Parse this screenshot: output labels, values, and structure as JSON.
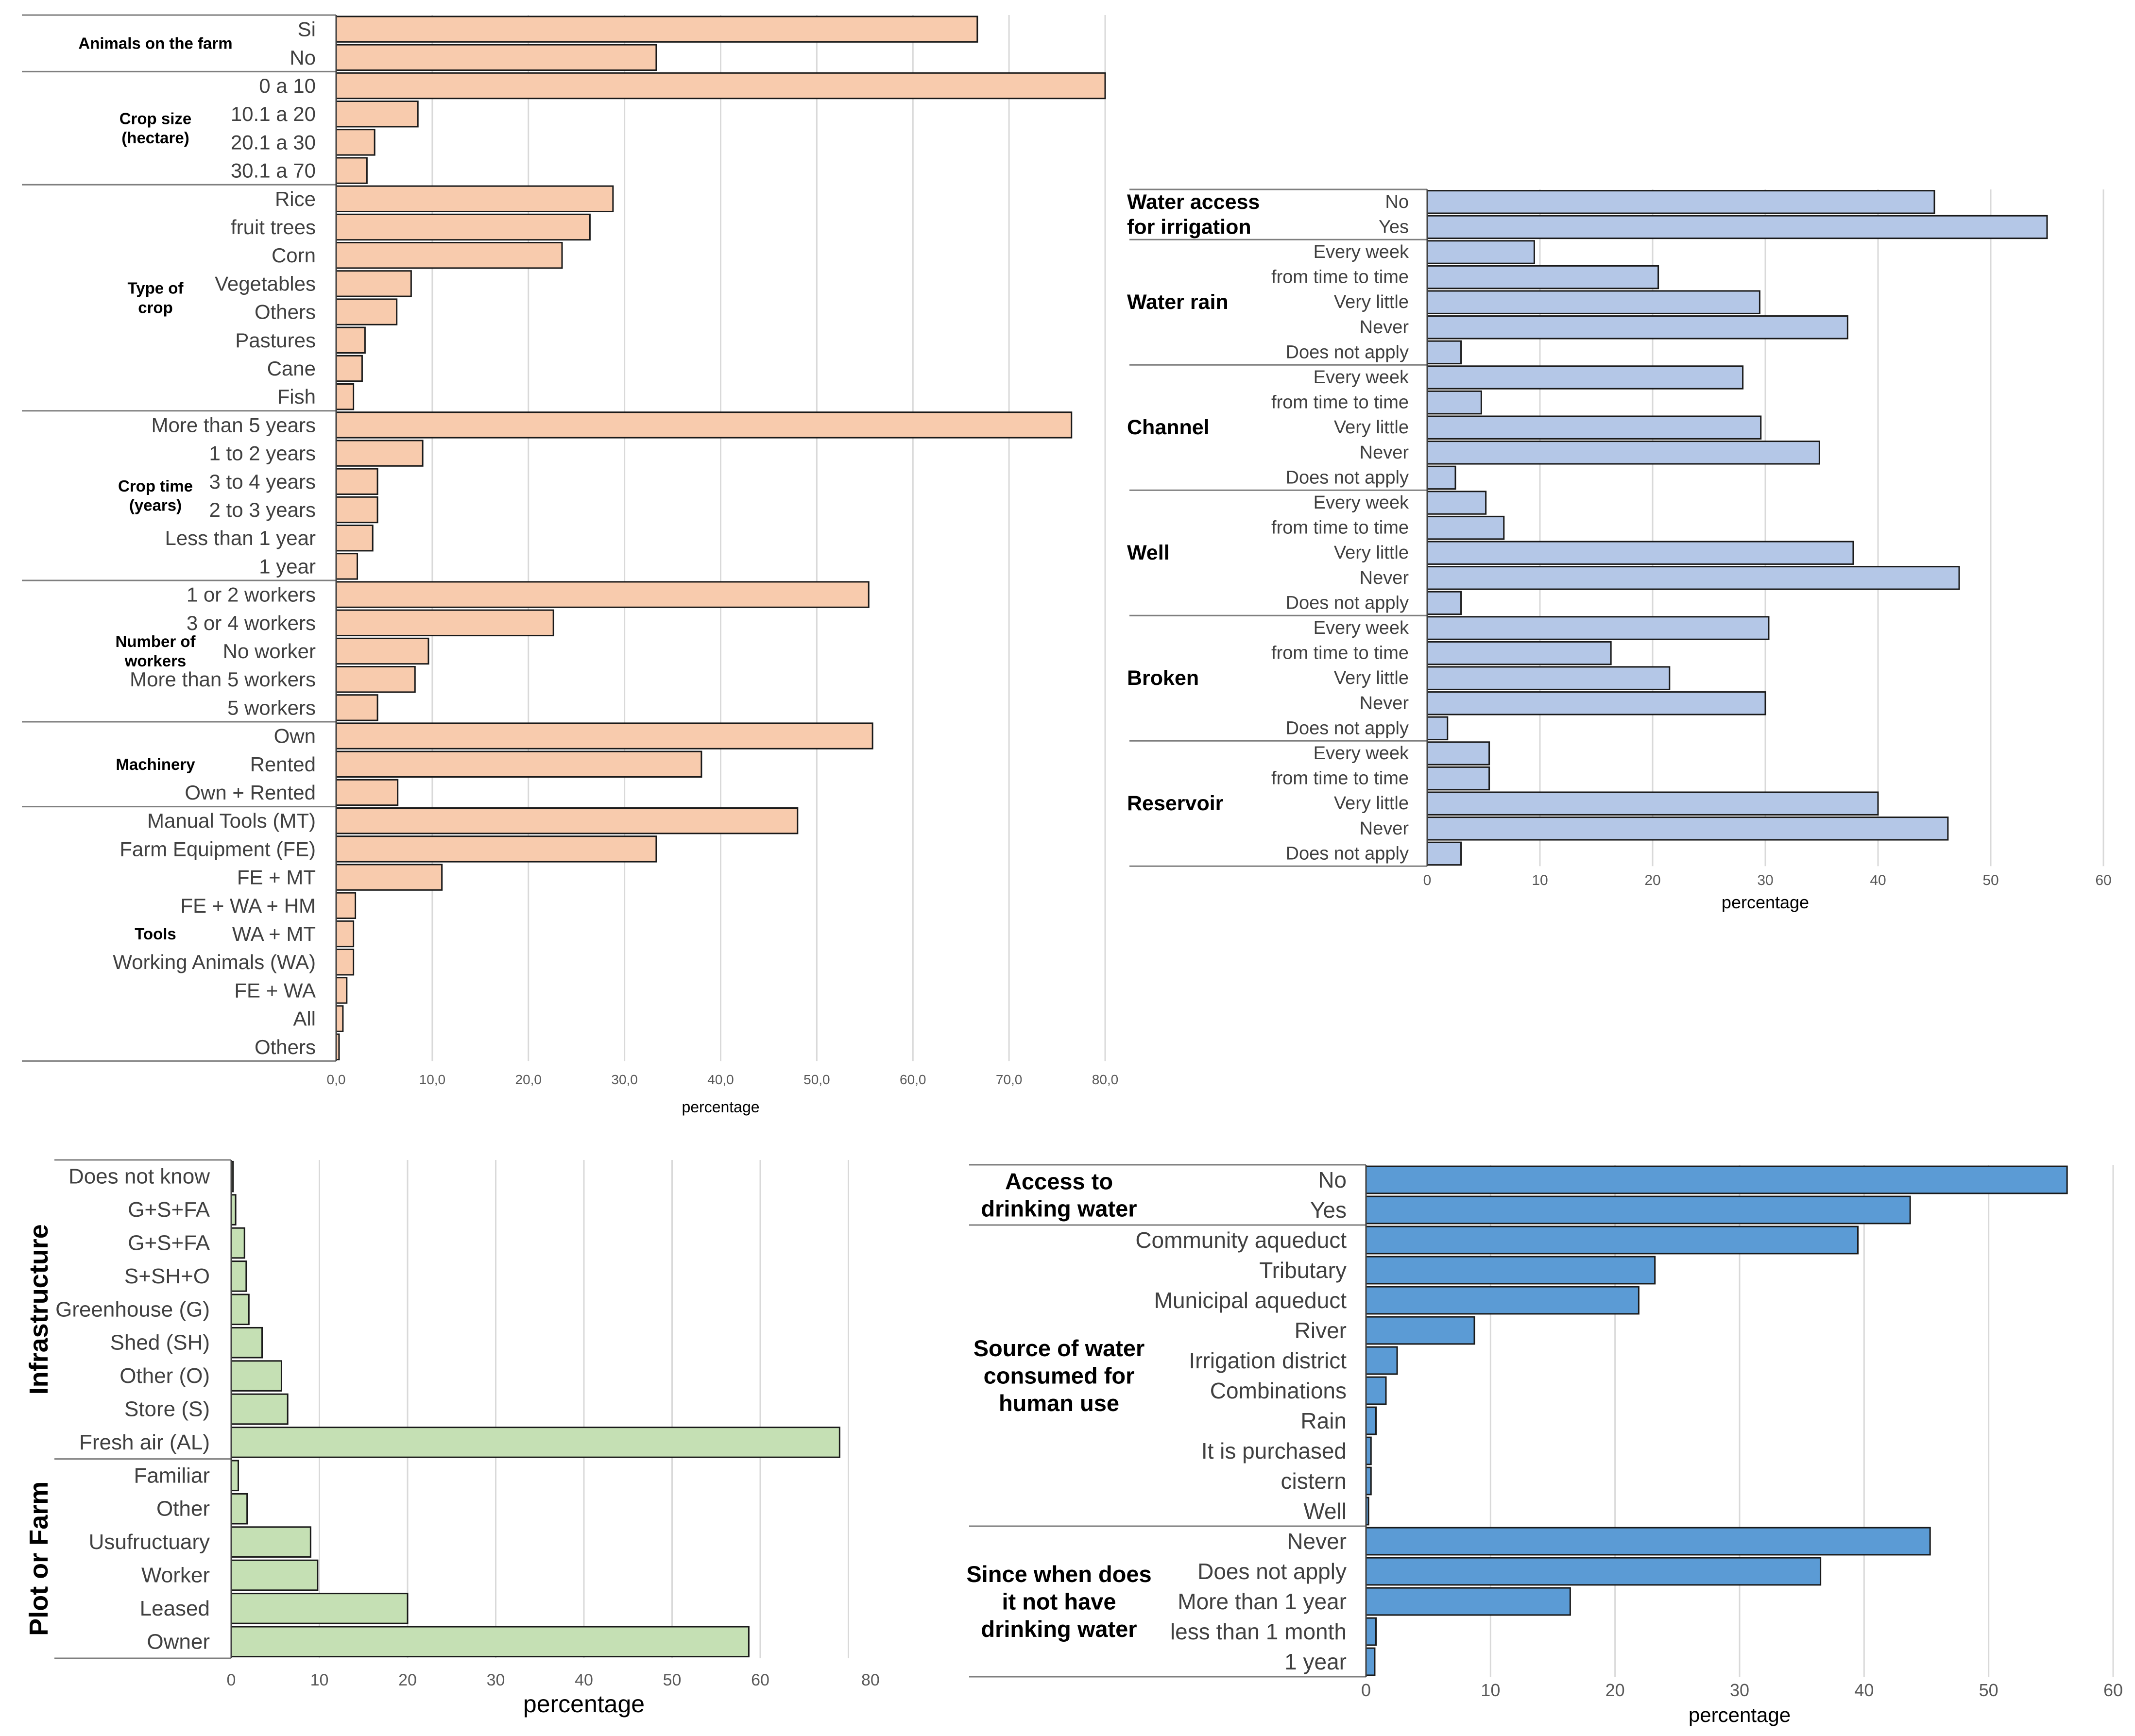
{
  "chart_data": [
    {
      "id": "farm",
      "type": "bar",
      "orientation": "horizontal",
      "color": "#F8CBAD",
      "xlabel": "percentage",
      "xlim": [
        0,
        80
      ],
      "ticks": [
        "0,0",
        "10,0",
        "20,0",
        "30,0",
        "40,0",
        "50,0",
        "60,0",
        "70,0",
        "80,0"
      ],
      "groups": [
        {
          "label": "Animals on the farm",
          "categories": [
            "Si",
            "No"
          ],
          "values": [
            66.7,
            33.3
          ]
        },
        {
          "label": "Crop size\n(hectare)",
          "categories": [
            "0 a 10",
            "10.1 a 20",
            "20.1 a 30",
            "30.1 a 70"
          ],
          "values": [
            84.0,
            8.5,
            4.0,
            3.2
          ]
        },
        {
          "label": "Type of\ncrop",
          "categories": [
            "Rice",
            "fruit trees",
            "Corn",
            "Vegetables",
            "Others",
            "Pastures",
            "Cane",
            "Fish"
          ],
          "values": [
            28.8,
            26.4,
            23.5,
            7.8,
            6.3,
            3.0,
            2.7,
            1.8
          ]
        },
        {
          "label": "Crop time\n(years)",
          "categories": [
            "More than 5 years",
            "1 to 2 years",
            "3 to 4 years",
            "2 to 3 years",
            "Less than 1 year",
            "1 year"
          ],
          "values": [
            76.5,
            9.0,
            4.3,
            4.3,
            3.8,
            2.2
          ]
        },
        {
          "label": "Number of\nworkers",
          "categories": [
            "1 or 2 workers",
            "3 or 4 workers",
            "No worker",
            "More than 5 workers",
            "5 workers"
          ],
          "values": [
            55.4,
            22.6,
            9.6,
            8.2,
            4.3
          ]
        },
        {
          "label": "Machinery",
          "categories": [
            "Own",
            "Rented",
            "Own + Rented"
          ],
          "values": [
            55.8,
            38.0,
            6.4
          ]
        },
        {
          "label": "Tools",
          "categories": [
            "Manual Tools (MT)",
            "Farm Equipment (FE)",
            "FE + MT",
            "FE + WA + HM",
            "WA + MT",
            "Working Animals (WA)",
            "FE + WA",
            "All",
            "Others"
          ],
          "values": [
            48.0,
            33.3,
            11.0,
            2.0,
            1.8,
            1.8,
            1.1,
            0.7,
            0.3
          ]
        }
      ]
    },
    {
      "id": "irrigation",
      "type": "bar",
      "orientation": "horizontal",
      "color": "#B4C7E7",
      "xlabel": "percentage",
      "xlim": [
        0,
        60
      ],
      "ticks": [
        "0",
        "10",
        "20",
        "30",
        "40",
        "50",
        "60"
      ],
      "groups": [
        {
          "label": "Water access\nfor irrigation",
          "categories": [
            "No",
            "Yes"
          ],
          "values": [
            45.0,
            55.0
          ]
        },
        {
          "label": "Water rain",
          "categories": [
            "Every week",
            "from time to time",
            "Very little",
            "Never",
            "Does not apply"
          ],
          "values": [
            9.5,
            20.5,
            29.5,
            37.3,
            3.0
          ]
        },
        {
          "label": "Channel",
          "categories": [
            "Every week",
            "from time to time",
            "Very little",
            "Never",
            "Does not apply"
          ],
          "values": [
            28.0,
            4.8,
            29.6,
            34.8,
            2.5
          ]
        },
        {
          "label": "Well",
          "categories": [
            "Every week",
            "from time to time",
            "Very little",
            "Never",
            "Does not apply"
          ],
          "values": [
            5.2,
            6.8,
            37.8,
            47.2,
            3.0
          ]
        },
        {
          "label": "Broken",
          "categories": [
            "Every week",
            "from time to time",
            "Very little",
            "Never",
            "Does not apply"
          ],
          "values": [
            30.3,
            16.3,
            21.5,
            30.0,
            1.8
          ]
        },
        {
          "label": "Reservoir",
          "categories": [
            "Every week",
            "from time to time",
            "Very little",
            "Never",
            "Does not apply"
          ],
          "values": [
            5.5,
            5.5,
            40.0,
            46.2,
            3.0
          ]
        }
      ]
    },
    {
      "id": "infrastructure",
      "type": "bar",
      "orientation": "horizontal",
      "color": "#C5E0B4",
      "xlabel": "percentage",
      "xlim": [
        0,
        80
      ],
      "ticks": [
        "0",
        "10",
        "20",
        "30",
        "40",
        "50",
        "60",
        "80"
      ],
      "groups": [
        {
          "label": "Infrastructure",
          "categories": [
            "Does not know",
            "G+S+FA",
            "G+S+FA",
            "S+SH+O",
            "Greenhouse (G)",
            "Shed (SH)",
            "Other (O)",
            "Store (S)",
            "Fresh air (AL)"
          ],
          "values": [
            0.2,
            0.5,
            1.5,
            1.7,
            2.0,
            3.5,
            5.7,
            6.4,
            69.0
          ]
        },
        {
          "label": "Plot or Farm",
          "categories": [
            "Familiar",
            "Other",
            "Usufructuary",
            "Worker",
            "Leased",
            "Owner"
          ],
          "values": [
            0.8,
            1.8,
            9.0,
            9.8,
            20.0,
            58.7
          ]
        }
      ]
    },
    {
      "id": "drinking",
      "type": "bar",
      "orientation": "horizontal",
      "color": "#5B9BD5",
      "xlabel": "percentage",
      "xlim": [
        0,
        60
      ],
      "ticks": [
        "0",
        "10",
        "20",
        "30",
        "40",
        "50",
        "60"
      ],
      "groups": [
        {
          "label": "Access to\ndrinking water",
          "categories": [
            "No",
            "Yes"
          ],
          "values": [
            56.3,
            43.7
          ]
        },
        {
          "label": "Source of water\nconsumed for\nhuman use",
          "categories": [
            "Community aqueduct",
            "Tributary",
            "Municipal aqueduct",
            "River",
            "Irrigation district",
            "Combinations",
            "Rain",
            "It is purchased",
            "cistern",
            "Well"
          ],
          "values": [
            39.5,
            23.2,
            21.9,
            8.7,
            2.5,
            1.6,
            0.8,
            0.4,
            0.4,
            0.2
          ]
        },
        {
          "label": "Since when does\nit not have\ndrinking water",
          "categories": [
            "Never",
            "Does not apply",
            "More than 1 year",
            "less than 1 month",
            "1 year"
          ],
          "values": [
            45.3,
            36.5,
            16.4,
            0.8,
            0.7
          ]
        }
      ]
    }
  ]
}
